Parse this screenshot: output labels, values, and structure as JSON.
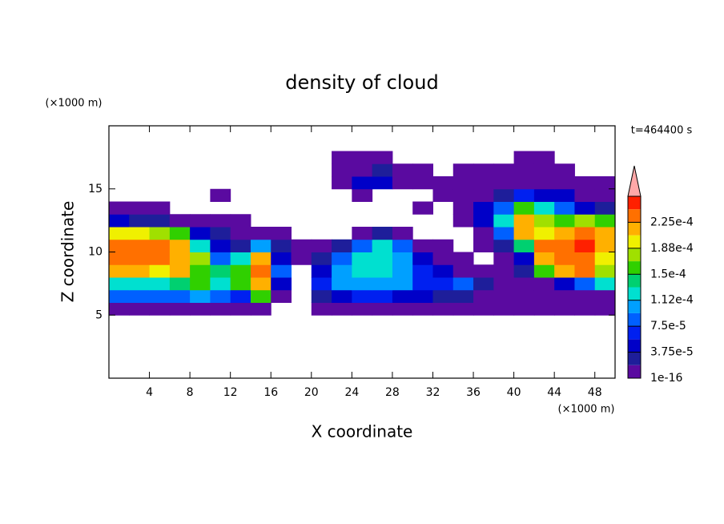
{
  "chart_data": {
    "type": "contourf",
    "title": "density of cloud",
    "xlabel": "X coordinate",
    "ylabel": "Z coordinate",
    "x_unit": "(×1000 m)",
    "y_unit": "(×1000 m)",
    "annotation": "t=464400 s",
    "xlim": [
      0,
      50
    ],
    "ylim": [
      0,
      20
    ],
    "xticks": [
      4,
      8,
      12,
      16,
      20,
      24,
      28,
      32,
      36,
      40,
      44,
      48
    ],
    "yticks": [
      5,
      10,
      15
    ],
    "x": [
      1,
      3,
      5,
      7,
      9,
      11,
      13,
      15,
      17,
      19,
      21,
      23,
      25,
      27,
      29,
      31,
      33,
      35,
      37,
      39,
      41,
      43,
      45,
      47,
      49
    ],
    "y": [
      5.5,
      6.5,
      7.5,
      8.5,
      9.5,
      10.5,
      11.5,
      12.5,
      13.5,
      14.5,
      15.5,
      16.5,
      17.5
    ],
    "z": [
      [
        1e-05,
        1e-05,
        1e-05,
        1e-05,
        1e-05,
        1e-05,
        1e-05,
        1e-05,
        null,
        null,
        1e-05,
        1e-05,
        1e-05,
        1e-05,
        1e-05,
        1e-05,
        1e-05,
        1e-05,
        1e-05,
        1e-05,
        1e-05,
        1e-05,
        1e-05,
        1e-05,
        1e-05
      ],
      [
        8e-05,
        8e-05,
        9e-05,
        8e-05,
        0.0001,
        8e-05,
        6e-05,
        0.00016,
        1e-05,
        null,
        3e-05,
        5e-05,
        6e-05,
        6e-05,
        5e-05,
        4e-05,
        3e-05,
        3e-05,
        1e-05,
        1e-05,
        1e-05,
        1e-05,
        1e-05,
        1e-05,
        1e-05
      ],
      [
        0.00013,
        0.00012,
        0.00013,
        0.00014,
        0.00015,
        0.00012,
        0.00015,
        0.00022,
        4e-05,
        null,
        7e-05,
        0.0001,
        0.0001,
        0.0001,
        0.00011,
        7e-05,
        6e-05,
        8e-05,
        3e-05,
        1e-05,
        1e-05,
        1e-05,
        4e-05,
        8e-05,
        0.00013
      ],
      [
        0.00022,
        0.00022,
        0.0002,
        0.00022,
        0.00015,
        0.00014,
        0.00016,
        0.00023,
        8e-05,
        null,
        5e-05,
        0.0001,
        0.00012,
        0.00012,
        0.0001,
        6e-05,
        4e-05,
        1e-05,
        1e-05,
        1e-05,
        3e-05,
        0.00015,
        0.00022,
        0.00023,
        0.00018
      ],
      [
        0.00024,
        0.00024,
        0.00023,
        0.00022,
        0.00018,
        8e-05,
        0.00012,
        0.00022,
        5e-05,
        1e-05,
        3e-05,
        8e-05,
        0.00012,
        0.00013,
        0.0001,
        4e-05,
        1e-05,
        1e-05,
        null,
        1e-05,
        5e-05,
        0.00022,
        0.00024,
        0.00024,
        0.0002
      ],
      [
        0.00024,
        0.00023,
        0.00023,
        0.00022,
        0.00012,
        5e-05,
        3e-05,
        0.0001,
        3e-05,
        1e-05,
        1e-05,
        3e-05,
        8e-05,
        0.00012,
        8e-05,
        1e-05,
        1e-05,
        null,
        1e-05,
        3e-05,
        0.00014,
        0.00024,
        0.00024,
        0.00025,
        0.00022
      ],
      [
        0.0002,
        0.0002,
        0.00018,
        0.00016,
        5e-05,
        2e-05,
        1e-05,
        1e-05,
        1e-05,
        null,
        null,
        null,
        1e-05,
        3e-05,
        1e-05,
        null,
        null,
        null,
        1e-05,
        8e-05,
        0.00022,
        0.0002,
        0.00022,
        0.00024,
        0.00022
      ],
      [
        5e-05,
        3e-05,
        2e-05,
        1e-05,
        1e-05,
        1e-05,
        1e-05,
        null,
        null,
        null,
        null,
        null,
        null,
        null,
        null,
        null,
        null,
        1e-05,
        4e-05,
        0.00012,
        0.00022,
        0.00018,
        0.00016,
        0.00018,
        0.00015
      ],
      [
        1e-05,
        1e-05,
        1e-05,
        null,
        null,
        null,
        null,
        null,
        null,
        null,
        null,
        null,
        null,
        null,
        null,
        1e-05,
        null,
        1e-05,
        5e-05,
        8e-05,
        0.00016,
        0.00012,
        8e-05,
        5e-05,
        3e-05
      ],
      [
        null,
        null,
        null,
        null,
        null,
        1e-05,
        null,
        null,
        null,
        null,
        null,
        null,
        1e-05,
        null,
        null,
        null,
        1e-05,
        1e-05,
        1e-05,
        3e-05,
        6e-05,
        5e-05,
        4e-05,
        1e-05,
        1e-05
      ],
      [
        null,
        null,
        null,
        null,
        null,
        null,
        null,
        null,
        null,
        null,
        null,
        1e-05,
        5e-05,
        4e-05,
        1e-05,
        1e-05,
        1e-05,
        1e-05,
        1e-05,
        1e-05,
        1e-05,
        1e-05,
        1e-05,
        1e-05,
        1e-05
      ],
      [
        null,
        null,
        null,
        null,
        null,
        null,
        null,
        null,
        null,
        null,
        null,
        1e-05,
        1e-05,
        3e-05,
        1e-05,
        1e-05,
        null,
        1e-05,
        1e-05,
        1e-05,
        1e-05,
        1e-05,
        1e-05,
        null,
        null
      ],
      [
        null,
        null,
        null,
        null,
        null,
        null,
        null,
        null,
        null,
        null,
        null,
        1e-05,
        1e-05,
        1e-05,
        null,
        null,
        null,
        null,
        null,
        null,
        1e-05,
        1e-05,
        null,
        null,
        null
      ]
    ],
    "levels": [
      1e-16,
      1.875e-05,
      3.75e-05,
      5.625e-05,
      7.5e-05,
      9.375e-05,
      0.0001125,
      0.00013125,
      0.00015,
      0.00016875,
      0.0001875,
      0.00020625,
      0.000225,
      0.00024375,
      0.0002625
    ],
    "colors": [
      "#5a0aa0",
      "#1e1e9a",
      "#0000c8",
      "#0020f0",
      "#0060ff",
      "#00a0ff",
      "#00e0d0",
      "#00d070",
      "#30d000",
      "#a0e000",
      "#f0f000",
      "#ffb000",
      "#ff7000",
      "#ff2000"
    ],
    "extend_color": "#ffa8a8",
    "colorbar_ticks": [
      {
        "value": 1e-16,
        "label": "1e-16"
      },
      {
        "value": 3.75e-05,
        "label": "3.75e-5"
      },
      {
        "value": 7.5e-05,
        "label": "7.5e-5"
      },
      {
        "value": 0.0001125,
        "label": "1.12e-4"
      },
      {
        "value": 0.00015,
        "label": "1.5e-4"
      },
      {
        "value": 0.0001875,
        "label": "1.88e-4"
      },
      {
        "value": 0.000225,
        "label": "2.25e-4"
      }
    ]
  }
}
